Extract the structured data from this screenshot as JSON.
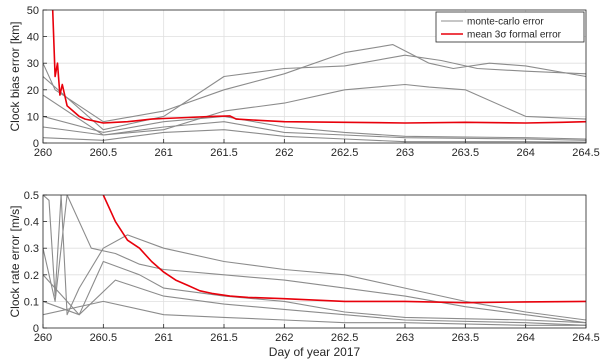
{
  "chart_data": [
    {
      "type": "line",
      "ylabel": "Clock bias error [km]",
      "xlabel": "",
      "xlim": [
        260,
        264.5
      ],
      "ylim": [
        0,
        50
      ],
      "xticks": [
        260,
        260.5,
        261,
        261.5,
        262,
        262.5,
        263,
        263.5,
        264,
        264.5
      ],
      "xtick_labels": [
        "260",
        "260.5",
        "261",
        "261.5",
        "262",
        "262.5",
        "263",
        "263.5",
        "264",
        "264.5"
      ],
      "yticks": [
        0,
        10,
        20,
        30,
        40,
        50
      ],
      "ytick_labels": [
        "0",
        "10",
        "20",
        "30",
        "40",
        "50"
      ],
      "grid": true,
      "legend": "top-right",
      "legend_entries": [
        "monte-carlo error",
        "mean 3σ formal error"
      ],
      "colors": {
        "monte_carlo": "#8c8c8c",
        "formal": "#e8000b"
      },
      "series": [
        {
          "name": "mean 3σ formal error",
          "color": "#e8000b",
          "x": [
            260.08,
            260.1,
            260.12,
            260.14,
            260.16,
            260.2,
            260.25,
            260.3,
            260.35,
            260.4,
            260.45,
            260.5,
            260.6,
            260.7,
            260.8,
            260.9,
            261.0,
            261.2,
            261.4,
            261.55,
            261.6,
            261.8,
            262.0,
            262.5,
            263.0,
            263.5,
            264.0,
            264.3,
            264.5
          ],
          "y": [
            50,
            25,
            30,
            18,
            22,
            14,
            12,
            10,
            9,
            8.5,
            8,
            7.5,
            7.8,
            8,
            8.5,
            9,
            9.2,
            9.6,
            10,
            10.2,
            9,
            8.5,
            8,
            7.8,
            7.5,
            7.8,
            7.5,
            7.8,
            8
          ]
        },
        {
          "name": "",
          "color": "#8c8c8c",
          "x": [
            260,
            260.1,
            260.5,
            261,
            261.5,
            262,
            262.5,
            262.9,
            263.2,
            263.4,
            263.7,
            264.0,
            264.5
          ],
          "y": [
            30,
            20,
            8,
            12,
            20,
            26,
            34,
            37,
            30,
            28,
            30,
            29,
            25
          ]
        },
        {
          "name": "",
          "color": "#8c8c8c",
          "x": [
            260,
            260.5,
            261,
            261.5,
            262,
            262.5,
            263,
            263.3,
            263.6,
            264,
            264.5
          ],
          "y": [
            25,
            5,
            10,
            25,
            28,
            29,
            33,
            31,
            28,
            27,
            26
          ]
        },
        {
          "name": "",
          "color": "#8c8c8c",
          "x": [
            260,
            260.5,
            261,
            261.5,
            262,
            262.5,
            263,
            263.2,
            263.5,
            264,
            264.5
          ],
          "y": [
            18,
            3,
            5,
            12,
            15,
            20,
            22,
            21,
            20,
            10,
            9
          ]
        },
        {
          "name": "",
          "color": "#8c8c8c",
          "x": [
            260,
            260.5,
            261,
            261.5,
            262,
            262.5,
            263,
            264,
            264.5
          ],
          "y": [
            10,
            4,
            8,
            10,
            6,
            4,
            2.5,
            2,
            1.5
          ]
        },
        {
          "name": "",
          "color": "#8c8c8c",
          "x": [
            260,
            260.5,
            261,
            261.5,
            262,
            262.5,
            263,
            264,
            264.5
          ],
          "y": [
            6,
            3,
            6,
            8,
            4,
            3,
            2,
            1.5,
            1
          ]
        },
        {
          "name": "",
          "color": "#8c8c8c",
          "x": [
            260,
            260.5,
            261,
            261.5,
            262,
            262.5,
            263,
            264,
            264.5
          ],
          "y": [
            2,
            1,
            4,
            5,
            2.5,
            1.5,
            0.5,
            0.5,
            0.3
          ]
        }
      ]
    },
    {
      "type": "line",
      "ylabel": "Clock rate error [m/s]",
      "xlabel": "Day of year 2017",
      "xlim": [
        260,
        264.5
      ],
      "ylim": [
        0,
        0.5
      ],
      "xticks": [
        260,
        260.5,
        261,
        261.5,
        262,
        262.5,
        263,
        263.5,
        264,
        264.5
      ],
      "xtick_labels": [
        "260",
        "260.5",
        "261",
        "261.5",
        "262",
        "262.5",
        "263",
        "263.5",
        "264",
        "264.5"
      ],
      "yticks": [
        0,
        0.1,
        0.2,
        0.3,
        0.4,
        0.5
      ],
      "ytick_labels": [
        "0",
        "0.1",
        "0.2",
        "0.3",
        "0.4",
        "0.5"
      ],
      "grid": true,
      "legend": "none",
      "colors": {
        "monte_carlo": "#8c8c8c",
        "formal": "#e8000b"
      },
      "series": [
        {
          "name": "mean 3σ formal error",
          "color": "#e8000b",
          "x": [
            260.5,
            260.55,
            260.6,
            260.7,
            260.8,
            260.9,
            261.0,
            261.1,
            261.2,
            261.3,
            261.4,
            261.55,
            261.7,
            262.0,
            262.5,
            263.0,
            263.5,
            264.0,
            264.5
          ],
          "y": [
            0.5,
            0.45,
            0.4,
            0.33,
            0.3,
            0.25,
            0.21,
            0.18,
            0.16,
            0.14,
            0.13,
            0.12,
            0.115,
            0.11,
            0.1,
            0.1,
            0.095,
            0.098,
            0.1
          ]
        },
        {
          "name": "",
          "color": "#8c8c8c",
          "x": [
            260,
            260.05,
            260.1,
            260.15,
            260.2,
            260.3,
            260.5,
            260.7,
            261.0,
            261.5,
            262.0,
            262.5,
            263.0,
            263.5,
            264.0,
            264.5
          ],
          "y": [
            0.5,
            0.48,
            0.12,
            0.5,
            0.05,
            0.15,
            0.3,
            0.35,
            0.3,
            0.25,
            0.22,
            0.2,
            0.15,
            0.1,
            0.06,
            0.03
          ]
        },
        {
          "name": "",
          "color": "#8c8c8c",
          "x": [
            260,
            260.1,
            260.2,
            260.4,
            260.6,
            260.8,
            261.0,
            261.5,
            262.0,
            262.5,
            263.0,
            263.5,
            264.0,
            264.5
          ],
          "y": [
            0.3,
            0.1,
            0.5,
            0.3,
            0.28,
            0.24,
            0.22,
            0.2,
            0.18,
            0.15,
            0.12,
            0.08,
            0.05,
            0.02
          ]
        },
        {
          "name": "",
          "color": "#8c8c8c",
          "x": [
            260,
            260.3,
            260.5,
            260.8,
            261.0,
            261.5,
            262.0,
            262.5,
            263.0,
            264.0,
            264.5
          ],
          "y": [
            0.2,
            0.05,
            0.25,
            0.2,
            0.15,
            0.12,
            0.1,
            0.06,
            0.04,
            0.03,
            0.02
          ]
        },
        {
          "name": "",
          "color": "#8c8c8c",
          "x": [
            260,
            260.3,
            260.6,
            261.0,
            261.5,
            262.0,
            262.5,
            263.0,
            264.0,
            264.5
          ],
          "y": [
            0.1,
            0.05,
            0.18,
            0.12,
            0.09,
            0.07,
            0.05,
            0.03,
            0.02,
            0.01
          ]
        },
        {
          "name": "",
          "color": "#8c8c8c",
          "x": [
            260,
            260.5,
            261.0,
            261.5,
            262.0,
            262.5,
            263.0,
            264.0,
            264.5
          ],
          "y": [
            0.05,
            0.1,
            0.05,
            0.04,
            0.03,
            0.02,
            0.02,
            0.01,
            0.01
          ]
        }
      ]
    }
  ]
}
